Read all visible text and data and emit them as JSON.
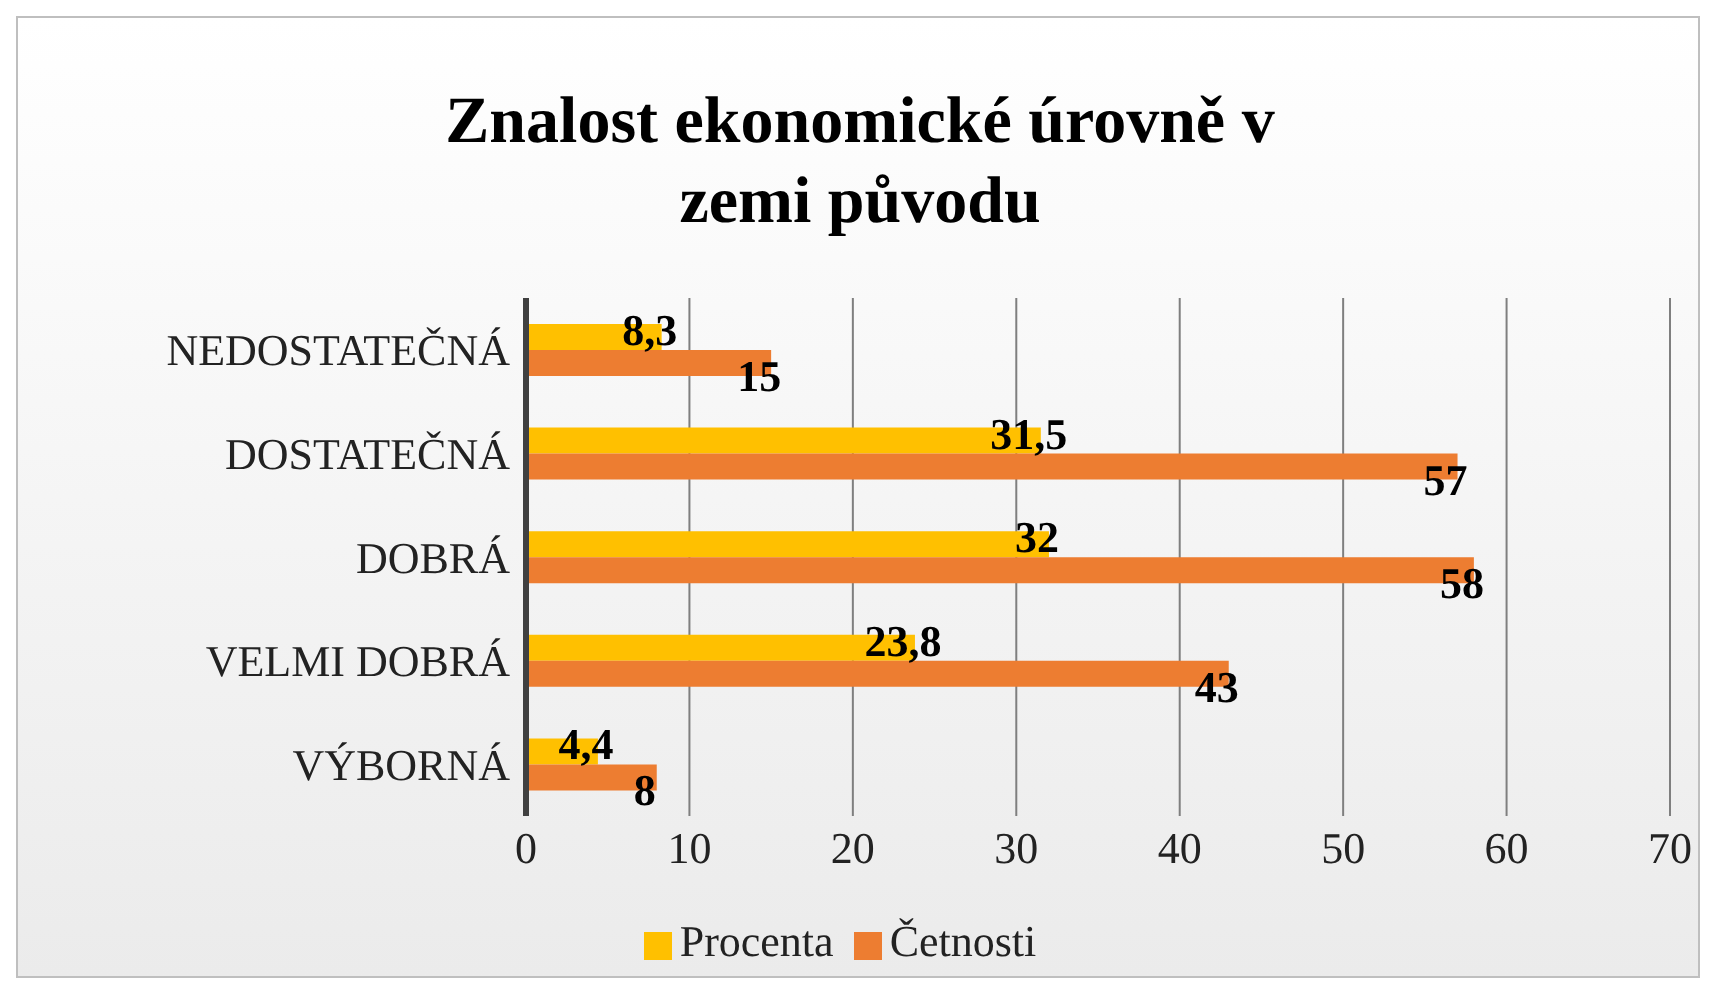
{
  "chart_data": {
    "type": "bar",
    "orientation": "horizontal",
    "title": "Znalost ekonomické úrovně v zemi původu",
    "categories": [
      "NEDOSTATEČNÁ",
      "DOSTATEČNÁ",
      "DOBRÁ",
      "VELMI DOBRÁ",
      "VÝBORNÁ"
    ],
    "series": [
      {
        "name": "Procenta",
        "color": "#ffc000",
        "values": [
          8.3,
          31.5,
          32,
          23.8,
          4.4
        ],
        "value_labels": [
          "8,3",
          "31,5",
          "32",
          "23,8",
          "4,4"
        ]
      },
      {
        "name": "Četnosti",
        "color": "#ed7d31",
        "values": [
          15,
          57,
          58,
          43,
          8
        ],
        "value_labels": [
          "15",
          "57",
          "58",
          "43",
          "8"
        ]
      }
    ],
    "xlim": [
      0,
      70
    ],
    "xticks": [
      0,
      10,
      20,
      30,
      40,
      50,
      60,
      70
    ],
    "grid": "x",
    "legend": "bottom"
  }
}
